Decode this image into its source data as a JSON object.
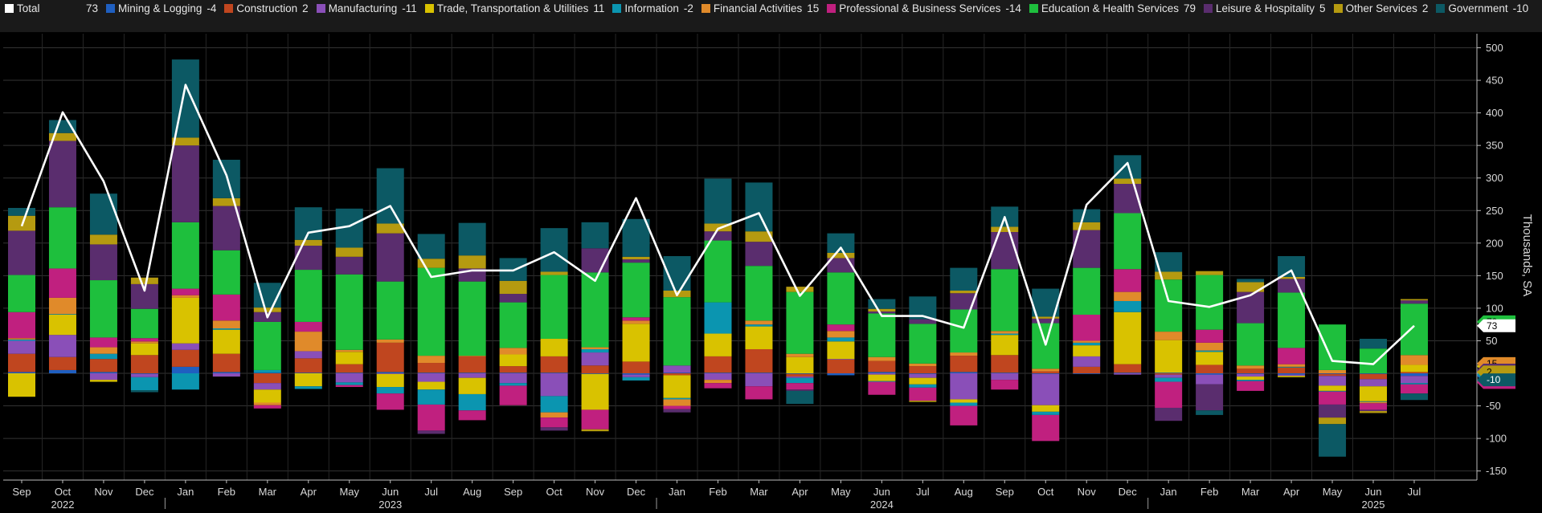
{
  "legend": [
    {
      "name": "Total",
      "value": "73",
      "color": "#ffffff"
    },
    {
      "name": "Mining & Logging",
      "value": "-4",
      "color": "#1f5fc0"
    },
    {
      "name": "Construction",
      "value": "2",
      "color": "#c0461f"
    },
    {
      "name": "Manufacturing",
      "value": "-11",
      "color": "#8a4fb8"
    },
    {
      "name": "Trade, Transportation & Utilities",
      "value": "11",
      "color": "#d9c200"
    },
    {
      "name": "Information",
      "value": "-2",
      "color": "#0b95b0"
    },
    {
      "name": "Financial Activities",
      "value": "15",
      "color": "#e08a2a"
    },
    {
      "name": "Professional & Business Services",
      "value": "-14",
      "color": "#c0207f"
    },
    {
      "name": "Education & Health Services",
      "value": "79",
      "color": "#1ebf3d"
    },
    {
      "name": "Leisure & Hospitality",
      "value": "5",
      "color": "#5a2d6e"
    },
    {
      "name": "Other Services",
      "value": "2",
      "color": "#b59a10"
    },
    {
      "name": "Government",
      "value": "-10",
      "color": "#0c5964"
    }
  ],
  "axis": {
    "ylabel": "Thousands, SA",
    "ticks": [
      "500",
      "450",
      "400",
      "350",
      "300",
      "250",
      "200",
      "150",
      "100",
      "50",
      "0",
      "-50",
      "-100",
      "-150"
    ],
    "months": [
      "Sep",
      "Oct",
      "Nov",
      "Dec",
      "Jan",
      "Feb",
      "Mar",
      "Apr",
      "May",
      "Jun",
      "Jul",
      "Aug",
      "Sep",
      "Oct",
      "Nov",
      "Dec",
      "Jan",
      "Feb",
      "Mar",
      "Apr",
      "May",
      "Jun",
      "Jul",
      "Aug",
      "Sep",
      "Oct",
      "Nov",
      "Dec",
      "Jan",
      "Feb",
      "Mar",
      "Apr",
      "May",
      "Jun",
      "Jul"
    ],
    "years": [
      {
        "label": "2022",
        "index": 1
      },
      {
        "label": "2023",
        "index": 9
      },
      {
        "label": "2024",
        "index": 21
      },
      {
        "label": "2025",
        "index": 33
      }
    ]
  },
  "chart_data": {
    "type": "bar",
    "stacked": true,
    "ylim": [
      -160,
      520
    ],
    "ylabel": "Thousands, SA",
    "categories": [
      "Sep",
      "Oct",
      "Nov",
      "Dec",
      "Jan",
      "Feb",
      "Mar",
      "Apr",
      "May",
      "Jun",
      "Jul",
      "Aug",
      "Sep",
      "Oct",
      "Nov",
      "Dec",
      "Jan",
      "Feb",
      "Mar",
      "Apr",
      "May",
      "Jun",
      "Jul",
      "Aug",
      "Sep",
      "Oct",
      "Nov",
      "Dec",
      "Jan",
      "Feb",
      "Mar",
      "Apr",
      "May",
      "Jun",
      "Jul"
    ],
    "total": [
      226,
      401,
      295,
      127,
      443,
      304,
      86,
      216,
      226,
      257,
      148,
      158,
      158,
      186,
      142,
      269,
      120,
      222,
      246,
      119,
      193,
      88,
      88,
      70,
      240,
      44,
      259,
      323,
      111,
      102,
      120,
      158,
      19,
      14,
      73
    ],
    "series": [
      {
        "name": "Mining & Logging",
        "color": "#1f5fc0",
        "values": [
          2,
          5,
          2,
          -1,
          10,
          2,
          1,
          1,
          1,
          2,
          1,
          1,
          1,
          1,
          -1,
          -2,
          1,
          1,
          1,
          -1,
          -3,
          2,
          -1,
          2,
          1,
          -1,
          -1,
          1,
          1,
          -2,
          -1,
          -2,
          -1,
          -1,
          -4
        ]
      },
      {
        "name": "Construction",
        "color": "#c0461f",
        "values": [
          28,
          20,
          20,
          28,
          26,
          28,
          -15,
          22,
          13,
          45,
          15,
          25,
          10,
          25,
          12,
          18,
          -3,
          25,
          36,
          -4,
          21,
          17,
          11,
          25,
          27,
          3,
          10,
          13,
          -2,
          13,
          7,
          9,
          -3,
          -8,
          2
        ]
      },
      {
        "name": "Manufacturing",
        "color": "#8a4fb8",
        "values": [
          20,
          34,
          -10,
          -5,
          10,
          -5,
          -10,
          11,
          -14,
          -1,
          -13,
          -7,
          -15,
          -35,
          20,
          -4,
          11,
          -10,
          -20,
          -2,
          1,
          -2,
          -6,
          -40,
          -10,
          -48,
          16,
          -2,
          -5,
          -15,
          -4,
          -2,
          -15,
          -11,
          -11
        ]
      },
      {
        "name": "Trade, Transportation & Utilities",
        "color": "#d9c200",
        "values": [
          -36,
          31,
          -3,
          18,
          70,
          37,
          -20,
          -20,
          19,
          -20,
          -12,
          -25,
          18,
          27,
          -55,
          58,
          -35,
          35,
          35,
          25,
          27,
          -10,
          -10,
          -5,
          31,
          -10,
          17,
          80,
          50,
          20,
          -5,
          -2,
          -8,
          -23,
          11
        ]
      },
      {
        "name": "Information",
        "color": "#0b95b0",
        "values": [
          2,
          1,
          8,
          -20,
          -25,
          2,
          4,
          -4,
          -4,
          -10,
          -23,
          -25,
          -4,
          -25,
          5,
          -5,
          -2,
          48,
          3,
          -8,
          6,
          -1,
          -5,
          -5,
          2,
          -5,
          4,
          17,
          -6,
          2,
          -2,
          1,
          -1,
          -1,
          -2
        ]
      },
      {
        "name": "Financial Activities",
        "color": "#e08a2a",
        "values": [
          2,
          25,
          10,
          3,
          4,
          12,
          -4,
          30,
          3,
          5,
          11,
          1,
          10,
          -8,
          3,
          5,
          -10,
          -5,
          6,
          5,
          10,
          6,
          4,
          5,
          4,
          4,
          3,
          14,
          13,
          12,
          5,
          4,
          5,
          -2,
          15
        ]
      },
      {
        "name": "Professional & Business Services",
        "color": "#c0207f",
        "values": [
          40,
          45,
          15,
          5,
          10,
          40,
          -5,
          15,
          -3,
          -25,
          -40,
          -15,
          -30,
          -15,
          -30,
          5,
          -5,
          -8,
          -20,
          -10,
          10,
          -20,
          -20,
          -30,
          -15,
          -40,
          40,
          35,
          -40,
          20,
          -15,
          25,
          -20,
          -10,
          -14
        ]
      },
      {
        "name": "Education & Health Services",
        "color": "#1ebf3d",
        "values": [
          57,
          94,
          88,
          45,
          102,
          68,
          74,
          80,
          116,
          89,
          135,
          114,
          70,
          98,
          115,
          84,
          105,
          95,
          84,
          95,
          80,
          67,
          61,
          66,
          95,
          70,
          72,
          86,
          80,
          84,
          65,
          85,
          70,
          38,
          79
        ]
      },
      {
        "name": "Leisure & Hospitality",
        "color": "#5a2d6e",
        "values": [
          68,
          102,
          55,
          38,
          118,
          68,
          15,
          37,
          27,
          74,
          -5,
          20,
          13,
          -5,
          37,
          5,
          -5,
          14,
          37,
          -2,
          22,
          3,
          7,
          25,
          57,
          7,
          58,
          45,
          -20,
          -40,
          48,
          21,
          -20,
          -2,
          5
        ]
      },
      {
        "name": "Other Services",
        "color": "#b59a10",
        "values": [
          23,
          12,
          15,
          10,
          12,
          12,
          7,
          9,
          14,
          15,
          14,
          20,
          20,
          5,
          -3,
          4,
          10,
          12,
          16,
          8,
          8,
          4,
          -2,
          4,
          8,
          3,
          12,
          8,
          12,
          6,
          15,
          3,
          -10,
          -3,
          2
        ]
      },
      {
        "name": "Government",
        "color": "#0c5964",
        "values": [
          12,
          20,
          63,
          -3,
          120,
          59,
          38,
          50,
          60,
          85,
          38,
          50,
          35,
          67,
          40,
          58,
          53,
          69,
          75,
          -20,
          30,
          15,
          35,
          35,
          31,
          43,
          20,
          36,
          30,
          -7,
          5,
          32,
          -50,
          15,
          -10
        ]
      }
    ]
  }
}
